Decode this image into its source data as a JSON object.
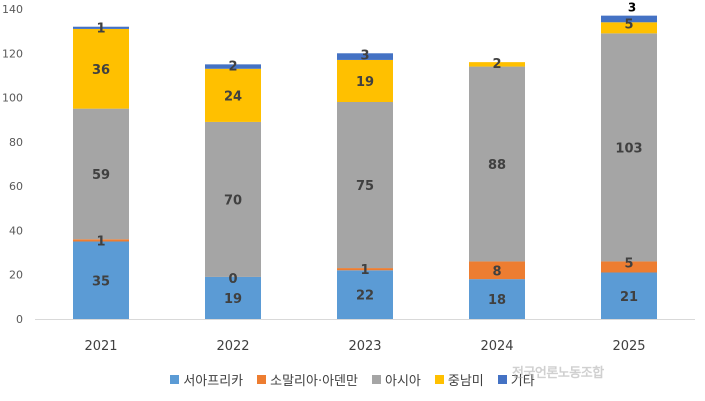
{
  "chart_data": {
    "type": "bar",
    "stacked": true,
    "categories": [
      "2021",
      "2022",
      "2023",
      "2024",
      "2025"
    ],
    "series": [
      {
        "name": "서아프리카",
        "color": "#5B9BD5",
        "values": [
          35,
          19,
          22,
          18,
          21
        ],
        "labels": [
          "35",
          "19",
          "22",
          "18",
          "21"
        ]
      },
      {
        "name": "소말리아·아덴만",
        "color": "#ED7D31",
        "values": [
          1,
          0,
          1,
          8,
          5
        ],
        "labels": [
          "1",
          "0",
          "1",
          "8",
          "5"
        ]
      },
      {
        "name": "아시아",
        "color": "#A5A5A5",
        "values": [
          59,
          70,
          75,
          88,
          103
        ],
        "labels": [
          "59",
          "70",
          "75",
          "88",
          "103"
        ]
      },
      {
        "name": "중남미",
        "color": "#FFC000",
        "values": [
          36,
          24,
          19,
          2,
          5
        ],
        "labels": [
          "36",
          "24",
          "19",
          "2",
          "5"
        ]
      },
      {
        "name": "기타",
        "color": "#4472C4",
        "values": [
          1,
          2,
          3,
          0,
          3
        ],
        "labels": [
          "1",
          "2",
          "3",
          "",
          "3"
        ]
      }
    ],
    "ylim": [
      0,
      140
    ],
    "yticks": [
      0,
      20,
      40,
      60,
      80,
      100,
      120,
      140
    ],
    "grid": false,
    "legend_position": "bottom"
  },
  "watermark": "전국언론노동조합"
}
